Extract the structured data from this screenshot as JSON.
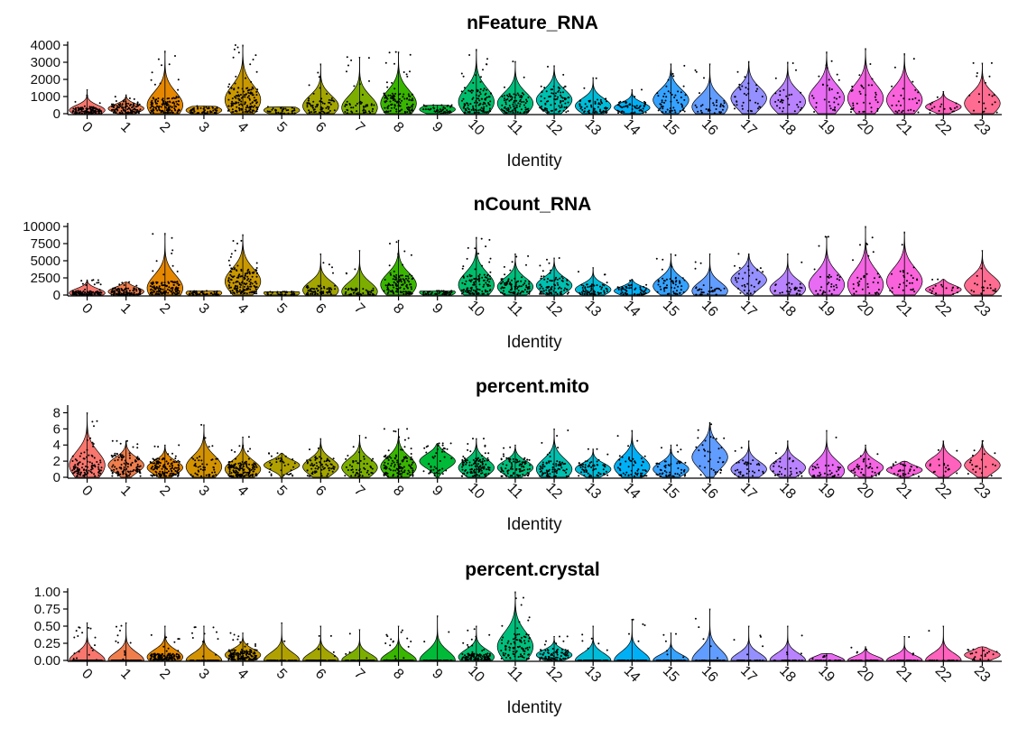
{
  "chart_data": [
    {
      "type": "violin",
      "title": "nFeature_RNA",
      "xlabel": "Identity",
      "ylabel": "",
      "categories": [
        "0",
        "1",
        "2",
        "3",
        "4",
        "5",
        "6",
        "7",
        "8",
        "9",
        "10",
        "11",
        "12",
        "13",
        "14",
        "15",
        "16",
        "17",
        "18",
        "19",
        "20",
        "21",
        "22",
        "23"
      ],
      "ylim": [
        0,
        4000
      ],
      "yticks": [
        0,
        1000,
        2000,
        3000,
        4000
      ],
      "ytick_labels": [
        "0",
        "1000",
        "2000",
        "3000",
        "4000"
      ],
      "max": [
        1400,
        1100,
        3650,
        450,
        4000,
        400,
        2900,
        3300,
        3600,
        500,
        3750,
        3050,
        2800,
        2100,
        1400,
        2900,
        2900,
        3050,
        3000,
        3600,
        3800,
        3500,
        1300,
        2950
      ],
      "median": [
        200,
        300,
        500,
        200,
        800,
        200,
        450,
        350,
        600,
        250,
        700,
        600,
        800,
        450,
        350,
        800,
        400,
        900,
        700,
        900,
        900,
        800,
        400,
        600
      ],
      "n_points": [
        110,
        110,
        130,
        50,
        150,
        35,
        70,
        50,
        120,
        45,
        120,
        95,
        85,
        65,
        55,
        55,
        35,
        35,
        30,
        32,
        35,
        28,
        18,
        20
      ],
      "colors": [
        "#F8766D",
        "#F07E4D",
        "#E58700",
        "#D39200",
        "#C99800",
        "#B0A100",
        "#A3A500",
        "#7CAE00",
        "#39B600",
        "#00BA38",
        "#00BE6C",
        "#00BF7D",
        "#00C0AF",
        "#00BCD8",
        "#00B0F6",
        "#35A2FF",
        "#619CFF",
        "#9590FF",
        "#B983FF",
        "#E76BF3",
        "#F564E3",
        "#FA62DB",
        "#FF62BC",
        "#FF6C91"
      ]
    },
    {
      "type": "violin",
      "title": "nCount_RNA",
      "xlabel": "Identity",
      "ylabel": "",
      "categories": [
        "0",
        "1",
        "2",
        "3",
        "4",
        "5",
        "6",
        "7",
        "8",
        "9",
        "10",
        "11",
        "12",
        "13",
        "14",
        "15",
        "16",
        "17",
        "18",
        "19",
        "20",
        "21",
        "22",
        "23"
      ],
      "ylim": [
        0,
        10000
      ],
      "yticks": [
        0,
        2500,
        5000,
        7500,
        10000
      ],
      "ytick_labels": [
        "0",
        "2500",
        "5000",
        "7500",
        "10000"
      ],
      "max": [
        2200,
        1900,
        9000,
        600,
        8800,
        500,
        6000,
        6500,
        8000,
        600,
        8400,
        6000,
        5400,
        4000,
        2300,
        6000,
        6000,
        6000,
        6000,
        8500,
        10000,
        9200,
        2300,
        6500
      ],
      "median": [
        300,
        500,
        1000,
        300,
        2000,
        300,
        700,
        500,
        1500,
        400,
        1500,
        1200,
        1400,
        800,
        600,
        1300,
        600,
        2200,
        900,
        1500,
        1500,
        2000,
        800,
        1400
      ],
      "n_points": [
        110,
        110,
        130,
        50,
        150,
        35,
        70,
        50,
        120,
        45,
        120,
        95,
        85,
        65,
        55,
        55,
        35,
        35,
        30,
        32,
        35,
        28,
        18,
        20
      ],
      "colors": [
        "#F8766D",
        "#F07E4D",
        "#E58700",
        "#D39200",
        "#C99800",
        "#B0A100",
        "#A3A500",
        "#7CAE00",
        "#39B600",
        "#00BA38",
        "#00BE6C",
        "#00BF7D",
        "#00C0AF",
        "#00BCD8",
        "#00B0F6",
        "#35A2FF",
        "#619CFF",
        "#9590FF",
        "#B983FF",
        "#E76BF3",
        "#F564E3",
        "#FA62DB",
        "#FF62BC",
        "#FF6C91"
      ]
    },
    {
      "type": "violin",
      "title": "percent.mito",
      "xlabel": "Identity",
      "ylabel": "",
      "categories": [
        "0",
        "1",
        "2",
        "3",
        "4",
        "5",
        "6",
        "7",
        "8",
        "9",
        "10",
        "11",
        "12",
        "13",
        "14",
        "15",
        "16",
        "17",
        "18",
        "19",
        "20",
        "21",
        "22",
        "23"
      ],
      "ylim": [
        0,
        8.5
      ],
      "yticks": [
        0,
        2,
        4,
        6,
        8
      ],
      "ytick_labels": [
        "0",
        "2",
        "4",
        "6",
        "8"
      ],
      "max": [
        8.0,
        4.5,
        4.0,
        6.5,
        5.0,
        3.0,
        4.8,
        5.2,
        6.0,
        4.2,
        4.8,
        4.0,
        6.0,
        3.5,
        5.8,
        4.0,
        6.8,
        4.5,
        4.5,
        5.8,
        4.0,
        2.0,
        4.5,
        4.5
      ],
      "median": [
        1.5,
        1.5,
        1.2,
        1.3,
        1.0,
        1.5,
        1.3,
        1.2,
        1.3,
        2.0,
        1.2,
        1.2,
        1.0,
        1.0,
        1.3,
        1.0,
        2.5,
        1.0,
        1.2,
        0.8,
        1.2,
        0.9,
        1.5,
        1.5
      ],
      "n_points": [
        110,
        110,
        130,
        50,
        150,
        35,
        70,
        50,
        120,
        45,
        120,
        95,
        85,
        65,
        55,
        55,
        35,
        35,
        30,
        32,
        35,
        28,
        18,
        20
      ],
      "colors": [
        "#F8766D",
        "#F07E4D",
        "#E58700",
        "#D39200",
        "#C99800",
        "#B0A100",
        "#A3A500",
        "#7CAE00",
        "#39B600",
        "#00BA38",
        "#00BE6C",
        "#00BF7D",
        "#00C0AF",
        "#00BCD8",
        "#00B0F6",
        "#35A2FF",
        "#619CFF",
        "#9590FF",
        "#B983FF",
        "#E76BF3",
        "#F564E3",
        "#FA62DB",
        "#FF62BC",
        "#FF6C91"
      ]
    },
    {
      "type": "violin",
      "title": "percent.crystal",
      "xlabel": "Identity",
      "ylabel": "",
      "categories": [
        "0",
        "1",
        "2",
        "3",
        "4",
        "5",
        "6",
        "7",
        "8",
        "9",
        "10",
        "11",
        "12",
        "13",
        "14",
        "15",
        "16",
        "17",
        "18",
        "19",
        "20",
        "21",
        "22",
        "23"
      ],
      "ylim": [
        0,
        1.0
      ],
      "yticks": [
        0,
        0.25,
        0.5,
        0.75,
        1.0
      ],
      "ytick_labels": [
        "0.00",
        "0.25",
        "0.50",
        "0.75",
        "1.00"
      ],
      "max": [
        0.55,
        0.55,
        0.5,
        0.5,
        0.4,
        0.55,
        0.5,
        0.45,
        0.5,
        0.65,
        0.5,
        1.0,
        0.35,
        0.5,
        0.6,
        0.4,
        0.75,
        0.5,
        0.5,
        0.1,
        0.2,
        0.35,
        0.5,
        0.2
      ],
      "median": [
        0.0,
        0.0,
        0.05,
        0.0,
        0.08,
        0.0,
        0.0,
        0.0,
        0.0,
        0.0,
        0.05,
        0.2,
        0.08,
        0.0,
        0.0,
        0.0,
        0.0,
        0.0,
        0.0,
        0.0,
        0.0,
        0.0,
        0.0,
        0.08
      ],
      "n_points": [
        110,
        110,
        130,
        50,
        150,
        35,
        70,
        50,
        120,
        45,
        120,
        95,
        85,
        65,
        55,
        55,
        35,
        35,
        30,
        32,
        35,
        28,
        18,
        20
      ],
      "colors": [
        "#F8766D",
        "#F07E4D",
        "#E58700",
        "#D39200",
        "#C99800",
        "#B0A100",
        "#A3A500",
        "#7CAE00",
        "#39B600",
        "#00BA38",
        "#00BE6C",
        "#00BF7D",
        "#00C0AF",
        "#00BCD8",
        "#00B0F6",
        "#35A2FF",
        "#619CFF",
        "#9590FF",
        "#B983FF",
        "#E76BF3",
        "#F564E3",
        "#FA62DB",
        "#FF62BC",
        "#FF6C91"
      ]
    }
  ]
}
